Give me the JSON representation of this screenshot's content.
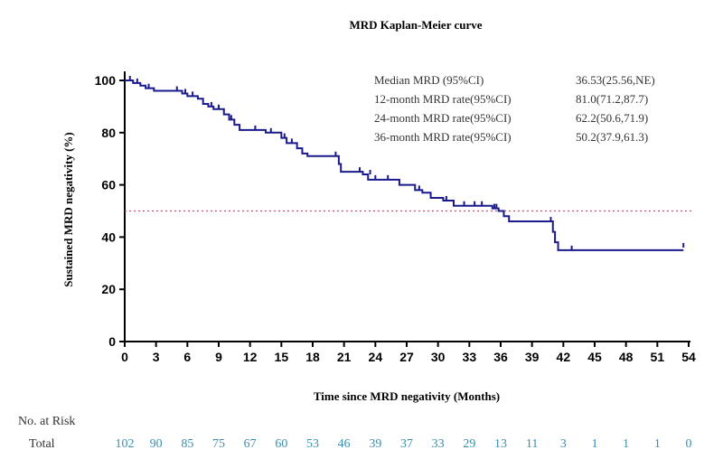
{
  "chart_data": {
    "type": "line",
    "subtype": "kaplan-meier step curve",
    "title": "MRD Kaplan-Meier curve",
    "xlabel": "Time since MRD negativity (Months)",
    "ylabel": "Sustained MRD negativity (%)",
    "xlim": [
      0,
      54
    ],
    "ylim": [
      0,
      100
    ],
    "xticks": [
      0,
      3,
      6,
      9,
      12,
      15,
      18,
      21,
      24,
      27,
      30,
      33,
      36,
      39,
      42,
      45,
      48,
      51,
      54
    ],
    "yticks": [
      0,
      20,
      40,
      60,
      80,
      100
    ],
    "grid": false,
    "reference_line": {
      "y": 50,
      "style": "dotted",
      "color": "#c0507a"
    },
    "series": [
      {
        "color": "#1a1a8c",
        "steps": [
          [
            0,
            100
          ],
          [
            0.8,
            99
          ],
          [
            1.5,
            98
          ],
          [
            2,
            97
          ],
          [
            2.8,
            96
          ],
          [
            5.5,
            95
          ],
          [
            6,
            94
          ],
          [
            7,
            93
          ],
          [
            7.5,
            91
          ],
          [
            8,
            90
          ],
          [
            8.5,
            89
          ],
          [
            9.5,
            87
          ],
          [
            10,
            85
          ],
          [
            10.5,
            83
          ],
          [
            11,
            81
          ],
          [
            13.5,
            80
          ],
          [
            15,
            78
          ],
          [
            15.5,
            76
          ],
          [
            16.5,
            74
          ],
          [
            17,
            72
          ],
          [
            17.5,
            71
          ],
          [
            20.5,
            68
          ],
          [
            20.7,
            65
          ],
          [
            22.8,
            64
          ],
          [
            23.3,
            62
          ],
          [
            26.3,
            60
          ],
          [
            27.8,
            58
          ],
          [
            28.5,
            57
          ],
          [
            29.3,
            55
          ],
          [
            30.5,
            54
          ],
          [
            31.5,
            52
          ],
          [
            35.2,
            51
          ],
          [
            35.8,
            50
          ],
          [
            36.3,
            48
          ],
          [
            36.8,
            46
          ],
          [
            41,
            42
          ],
          [
            41.2,
            38
          ],
          [
            41.5,
            35
          ],
          [
            53.5,
            35
          ]
        ],
        "censored": [
          [
            0.5,
            100
          ],
          [
            1.2,
            99
          ],
          [
            2.3,
            97
          ],
          [
            5,
            96
          ],
          [
            5.8,
            95
          ],
          [
            6.5,
            94
          ],
          [
            8.3,
            90
          ],
          [
            9,
            89
          ],
          [
            10.2,
            85
          ],
          [
            12.5,
            81
          ],
          [
            14,
            80
          ],
          [
            15.3,
            78
          ],
          [
            16,
            76
          ],
          [
            20.2,
            71
          ],
          [
            22.5,
            65
          ],
          [
            23.5,
            64
          ],
          [
            24,
            62
          ],
          [
            25.2,
            62
          ],
          [
            28.2,
            58
          ],
          [
            30.8,
            54
          ],
          [
            32.5,
            52
          ],
          [
            33.5,
            52
          ],
          [
            34.2,
            52
          ],
          [
            35.4,
            51
          ],
          [
            35.6,
            51
          ],
          [
            40.8,
            46
          ],
          [
            42.8,
            35
          ],
          [
            53.5,
            36
          ]
        ]
      }
    ],
    "stats_table": {
      "rows": [
        {
          "label": "Median MRD (95%CI)",
          "value": "36.53(25.56,NE)"
        },
        {
          "label": "12-month MRD rate(95%CI)",
          "value": "81.0(71.2,87.7)"
        },
        {
          "label": "24-month MRD rate(95%CI)",
          "value": "62.2(50.6,71.9)"
        },
        {
          "label": "36-month MRD rate(95%CI)",
          "value": "50.2(37.9,61.3)"
        }
      ]
    },
    "risk_table": {
      "title": "No. at Risk",
      "row_label": "Total",
      "color": "#3a8fb0",
      "times": [
        0,
        3,
        6,
        9,
        12,
        15,
        18,
        21,
        24,
        27,
        30,
        33,
        36,
        39,
        42,
        45,
        48,
        51,
        54
      ],
      "values": [
        "102",
        "90",
        "85",
        "75",
        "67",
        "60",
        "53",
        "46",
        "39",
        "37",
        "33",
        "29",
        "13",
        "11",
        "3",
        "1",
        "1",
        "1",
        "0"
      ]
    }
  }
}
